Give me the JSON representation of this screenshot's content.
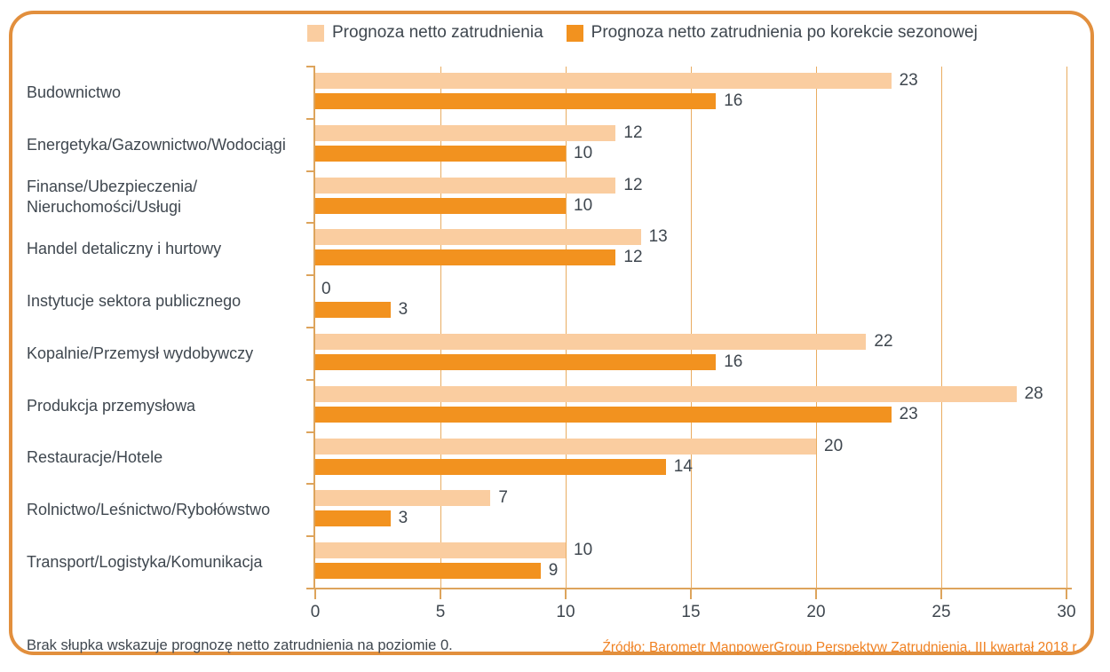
{
  "colors": {
    "bar_light": "#FACDA0",
    "bar_dark": "#F2921F",
    "grid": "#E9AC60",
    "axis": "#DDA45C",
    "border": "#E28F3D",
    "text": "#3F474F",
    "source": "#F08223"
  },
  "legend": {
    "items": [
      {
        "label": "Prognoza netto zatrudnienia",
        "color": "#FACDA0"
      },
      {
        "label": "Prognoza netto zatrudnienia po korekcie sezonowej",
        "color": "#F2921F"
      }
    ]
  },
  "chart_data": {
    "type": "bar",
    "orientation": "horizontal",
    "title": "",
    "categories": [
      "Budownictwo",
      "Energetyka/Gazownictwo/Wodociągi",
      "Finanse/Ubezpieczenia/\nNieruchomości/Usługi",
      "Handel detaliczny i hurtowy",
      "Instytucje sektora publicznego",
      "Kopalnie/Przemysł wydobywczy",
      "Produkcja przemysłowa",
      "Restauracje/Hotele",
      "Rolnictwo/Leśnictwo/Rybołówstwo",
      "Transport/Logistyka/Komunikacja"
    ],
    "series": [
      {
        "name": "Prognoza netto zatrudnienia",
        "color": "#FACDA0",
        "values": [
          23,
          12,
          12,
          13,
          0,
          22,
          28,
          20,
          7,
          10
        ]
      },
      {
        "name": "Prognoza netto zatrudnienia po korekcie sezonowej",
        "color": "#F2921F",
        "values": [
          16,
          10,
          10,
          12,
          3,
          16,
          23,
          14,
          3,
          9
        ]
      }
    ],
    "xlim": [
      0,
      30
    ],
    "xticks": [
      0,
      5,
      10,
      15,
      20,
      25,
      30
    ],
    "grid": "vertical",
    "legend_position": "top",
    "data_labels": true
  },
  "footer": {
    "note": "Brak słupka wskazuje prognozę netto zatrudnienia na poziomie 0.",
    "source": "Źródło: Barometr ManpowerGroup Perspektyw Zatrudnienia, III kwartał 2018 r."
  }
}
